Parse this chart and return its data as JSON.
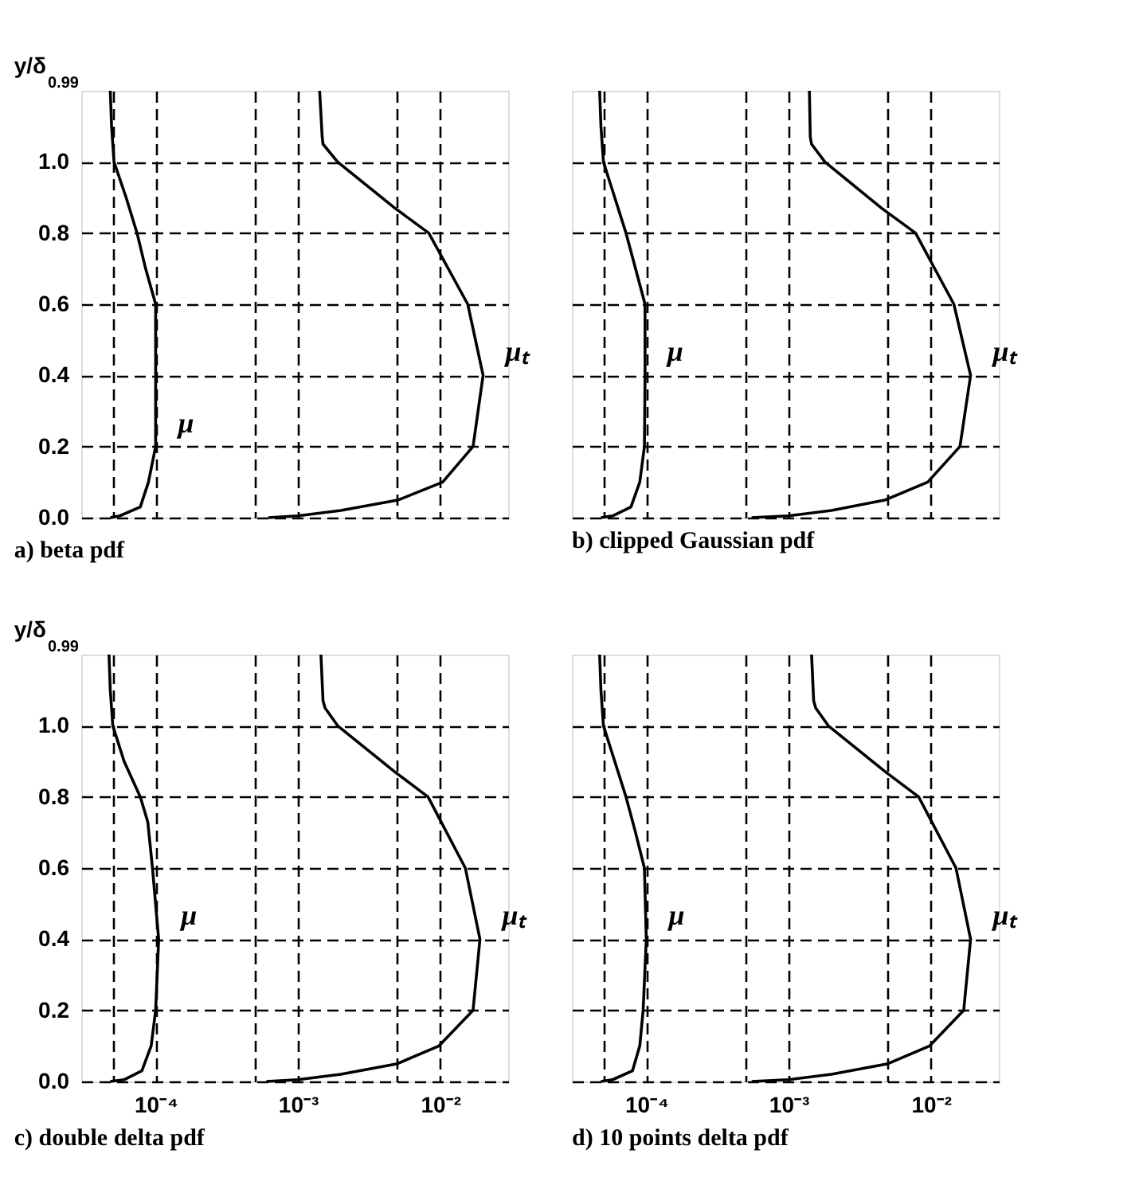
{
  "chart_data": [
    {
      "type": "line",
      "title": "a) beta pdf",
      "ylabel": "y/δ$_{0.99}$",
      "log": "x",
      "grid": true,
      "tick_labels": "y",
      "line_style": "solid",
      "marker": "none",
      "xlim": [
        3e-05,
        0.03
      ],
      "ylim": [
        0,
        1.2
      ],
      "xticks": [
        {
          "value": 5e-05,
          "label": null
        },
        {
          "value": 0.0001,
          "label": null
        },
        {
          "value": 0.0005,
          "label": null
        },
        {
          "value": 0.001,
          "label": null
        },
        {
          "value": 0.005,
          "label": null
        },
        {
          "value": 0.01,
          "label": null
        }
      ],
      "yticks": [
        {
          "value": 0,
          "label": "0.0"
        },
        {
          "value": 0.2,
          "label": "0.2"
        },
        {
          "value": 0.4,
          "label": "0.4"
        },
        {
          "value": 0.6,
          "label": "0.6"
        },
        {
          "value": 0.8,
          "label": "0.8"
        },
        {
          "value": 1,
          "label": "1.0"
        }
      ],
      "series": [
        {
          "name": "μ",
          "color": "#000000",
          "x": [
            4.8e-05,
            5.6e-05,
            7.8e-05,
            8.9e-05,
            0.0001,
            0.0001,
            0.0001,
            8.5e-05,
            7.4e-05,
            6.2e-05,
            5.1e-05,
            4.9e-05,
            4.8e-05
          ],
          "values": [
            0,
            0.005,
            0.03,
            0.1,
            0.2,
            0.4,
            0.6,
            0.7,
            0.8,
            0.9,
            1.0,
            1.1,
            1.2
          ]
        },
        {
          "name": "μₜ",
          "color": "#000000",
          "x": [
            0.00062,
            0.001,
            0.002,
            0.0051,
            0.0104,
            0.017,
            0.02,
            0.0156,
            0.0083,
            0.0048,
            0.0019,
            0.0015,
            0.00148,
            0.00142
          ],
          "values": [
            0,
            0.005,
            0.02,
            0.05,
            0.1,
            0.2,
            0.4,
            0.6,
            0.8,
            0.87,
            1.0,
            1.05,
            1.07,
            1.2
          ]
        }
      ]
    },
    {
      "type": "line",
      "title": "b) clipped Gaussian pdf",
      "log": "x",
      "grid": true,
      "tick_labels": false,
      "line_style": "solid",
      "marker": "none",
      "xlim": [
        3e-05,
        0.03
      ],
      "ylim": [
        0,
        1.2
      ],
      "xticks": [
        {
          "value": 5e-05,
          "label": null
        },
        {
          "value": 0.0001,
          "label": null
        },
        {
          "value": 0.0005,
          "label": null
        },
        {
          "value": 0.001,
          "label": null
        },
        {
          "value": 0.005,
          "label": null
        },
        {
          "value": 0.01,
          "label": null
        }
      ],
      "yticks": [
        {
          "value": 0,
          "label": null
        },
        {
          "value": 0.2,
          "label": null
        },
        {
          "value": 0.4,
          "label": null
        },
        {
          "value": 0.6,
          "label": null
        },
        {
          "value": 0.8,
          "label": null
        },
        {
          "value": 1,
          "label": null
        }
      ],
      "series": [
        {
          "name": "μ",
          "color": "#000000",
          "x": [
            4.8e-05,
            5.8e-05,
            7.8e-05,
            9e-05,
            9.7e-05,
            9.8e-05,
            9.8e-05,
            8.4e-05,
            7.2e-05,
            6e-05,
            5e-05,
            4.8e-05,
            4.7e-05
          ],
          "values": [
            0,
            0.005,
            0.03,
            0.1,
            0.2,
            0.4,
            0.6,
            0.7,
            0.8,
            0.9,
            1.0,
            1.1,
            1.2
          ]
        },
        {
          "name": "μₜ",
          "color": "#000000",
          "x": [
            0.00055,
            0.001,
            0.002,
            0.0048,
            0.0095,
            0.016,
            0.019,
            0.0145,
            0.0078,
            0.0045,
            0.0018,
            0.00145,
            0.00142,
            0.0014
          ],
          "values": [
            0,
            0.005,
            0.02,
            0.05,
            0.1,
            0.2,
            0.4,
            0.6,
            0.8,
            0.87,
            1.0,
            1.05,
            1.07,
            1.2
          ]
        }
      ]
    },
    {
      "type": "line",
      "title": "c) double delta pdf",
      "ylabel": "y/δ$_{0.99}$",
      "log": "x",
      "grid": true,
      "line_style": "solid",
      "marker": "none",
      "xlim": [
        3e-05,
        0.03
      ],
      "ylim": [
        0,
        1.2
      ],
      "xticks": [
        {
          "value": 5e-05,
          "label": null
        },
        {
          "value": 0.0001,
          "label": "10⁻⁴"
        },
        {
          "value": 0.0005,
          "label": null
        },
        {
          "value": 0.001,
          "label": "10⁻³"
        },
        {
          "value": 0.005,
          "label": null
        },
        {
          "value": 0.01,
          "label": "10⁻²"
        }
      ],
      "yticks": [
        {
          "value": 0,
          "label": "0.0"
        },
        {
          "value": 0.2,
          "label": "0.2"
        },
        {
          "value": 0.4,
          "label": "0.4"
        },
        {
          "value": 0.6,
          "label": "0.6"
        },
        {
          "value": 0.8,
          "label": "0.8"
        },
        {
          "value": 1,
          "label": "1.0"
        }
      ],
      "series": [
        {
          "name": "μ",
          "color": "#000000",
          "x": [
            4.8e-05,
            6e-05,
            8e-05,
            9.3e-05,
            0.0001,
            0.000105,
            9.5e-05,
            8.8e-05,
            7.8e-05,
            6e-05,
            5e-05,
            4.8e-05,
            4.7e-05
          ],
          "values": [
            0,
            0.005,
            0.03,
            0.1,
            0.2,
            0.4,
            0.6,
            0.73,
            0.8,
            0.9,
            1.0,
            1.1,
            1.2
          ]
        },
        {
          "name": "μₜ",
          "color": "#000000",
          "x": [
            0.0006,
            0.001,
            0.002,
            0.005,
            0.0098,
            0.017,
            0.019,
            0.015,
            0.0082,
            0.0048,
            0.0019,
            0.00155,
            0.0015,
            0.00145
          ],
          "values": [
            0,
            0.005,
            0.02,
            0.05,
            0.1,
            0.2,
            0.4,
            0.6,
            0.8,
            0.87,
            1.0,
            1.05,
            1.07,
            1.2
          ]
        }
      ]
    },
    {
      "type": "line",
      "title": "d) 10 points delta pdf",
      "log": "x",
      "grid": true,
      "tick_labels": "x",
      "line_style": "solid",
      "marker": "none",
      "xlim": [
        3e-05,
        0.03
      ],
      "ylim": [
        0,
        1.2
      ],
      "xticks": [
        {
          "value": 5e-05,
          "label": null
        },
        {
          "value": 0.0001,
          "label": "10⁻⁴"
        },
        {
          "value": 0.0005,
          "label": null
        },
        {
          "value": 0.001,
          "label": "10⁻³"
        },
        {
          "value": 0.005,
          "label": null
        },
        {
          "value": 0.01,
          "label": "10⁻²"
        }
      ],
      "yticks": [
        {
          "value": 0,
          "label": null
        },
        {
          "value": 0.2,
          "label": null
        },
        {
          "value": 0.4,
          "label": null
        },
        {
          "value": 0.6,
          "label": null
        },
        {
          "value": 0.8,
          "label": null
        },
        {
          "value": 1,
          "label": null
        }
      ],
      "series": [
        {
          "name": "μ",
          "color": "#000000",
          "x": [
            4.8e-05,
            5.8e-05,
            8e-05,
            9e-05,
            9.5e-05,
            0.0001,
            9.7e-05,
            8.4e-05,
            7.2e-05,
            6e-05,
            5e-05,
            4.8e-05,
            4.7e-05
          ],
          "values": [
            0,
            0.005,
            0.03,
            0.1,
            0.2,
            0.4,
            0.6,
            0.7,
            0.8,
            0.9,
            1.0,
            1.1,
            1.2
          ]
        },
        {
          "name": "μₜ",
          "color": "#000000",
          "x": [
            0.00055,
            0.001,
            0.002,
            0.005,
            0.0098,
            0.017,
            0.019,
            0.015,
            0.0082,
            0.0048,
            0.0019,
            0.00155,
            0.0015,
            0.00145
          ],
          "values": [
            0,
            0.005,
            0.02,
            0.05,
            0.1,
            0.2,
            0.4,
            0.6,
            0.8,
            0.87,
            1.0,
            1.05,
            1.07,
            1.2
          ]
        }
      ]
    }
  ]
}
